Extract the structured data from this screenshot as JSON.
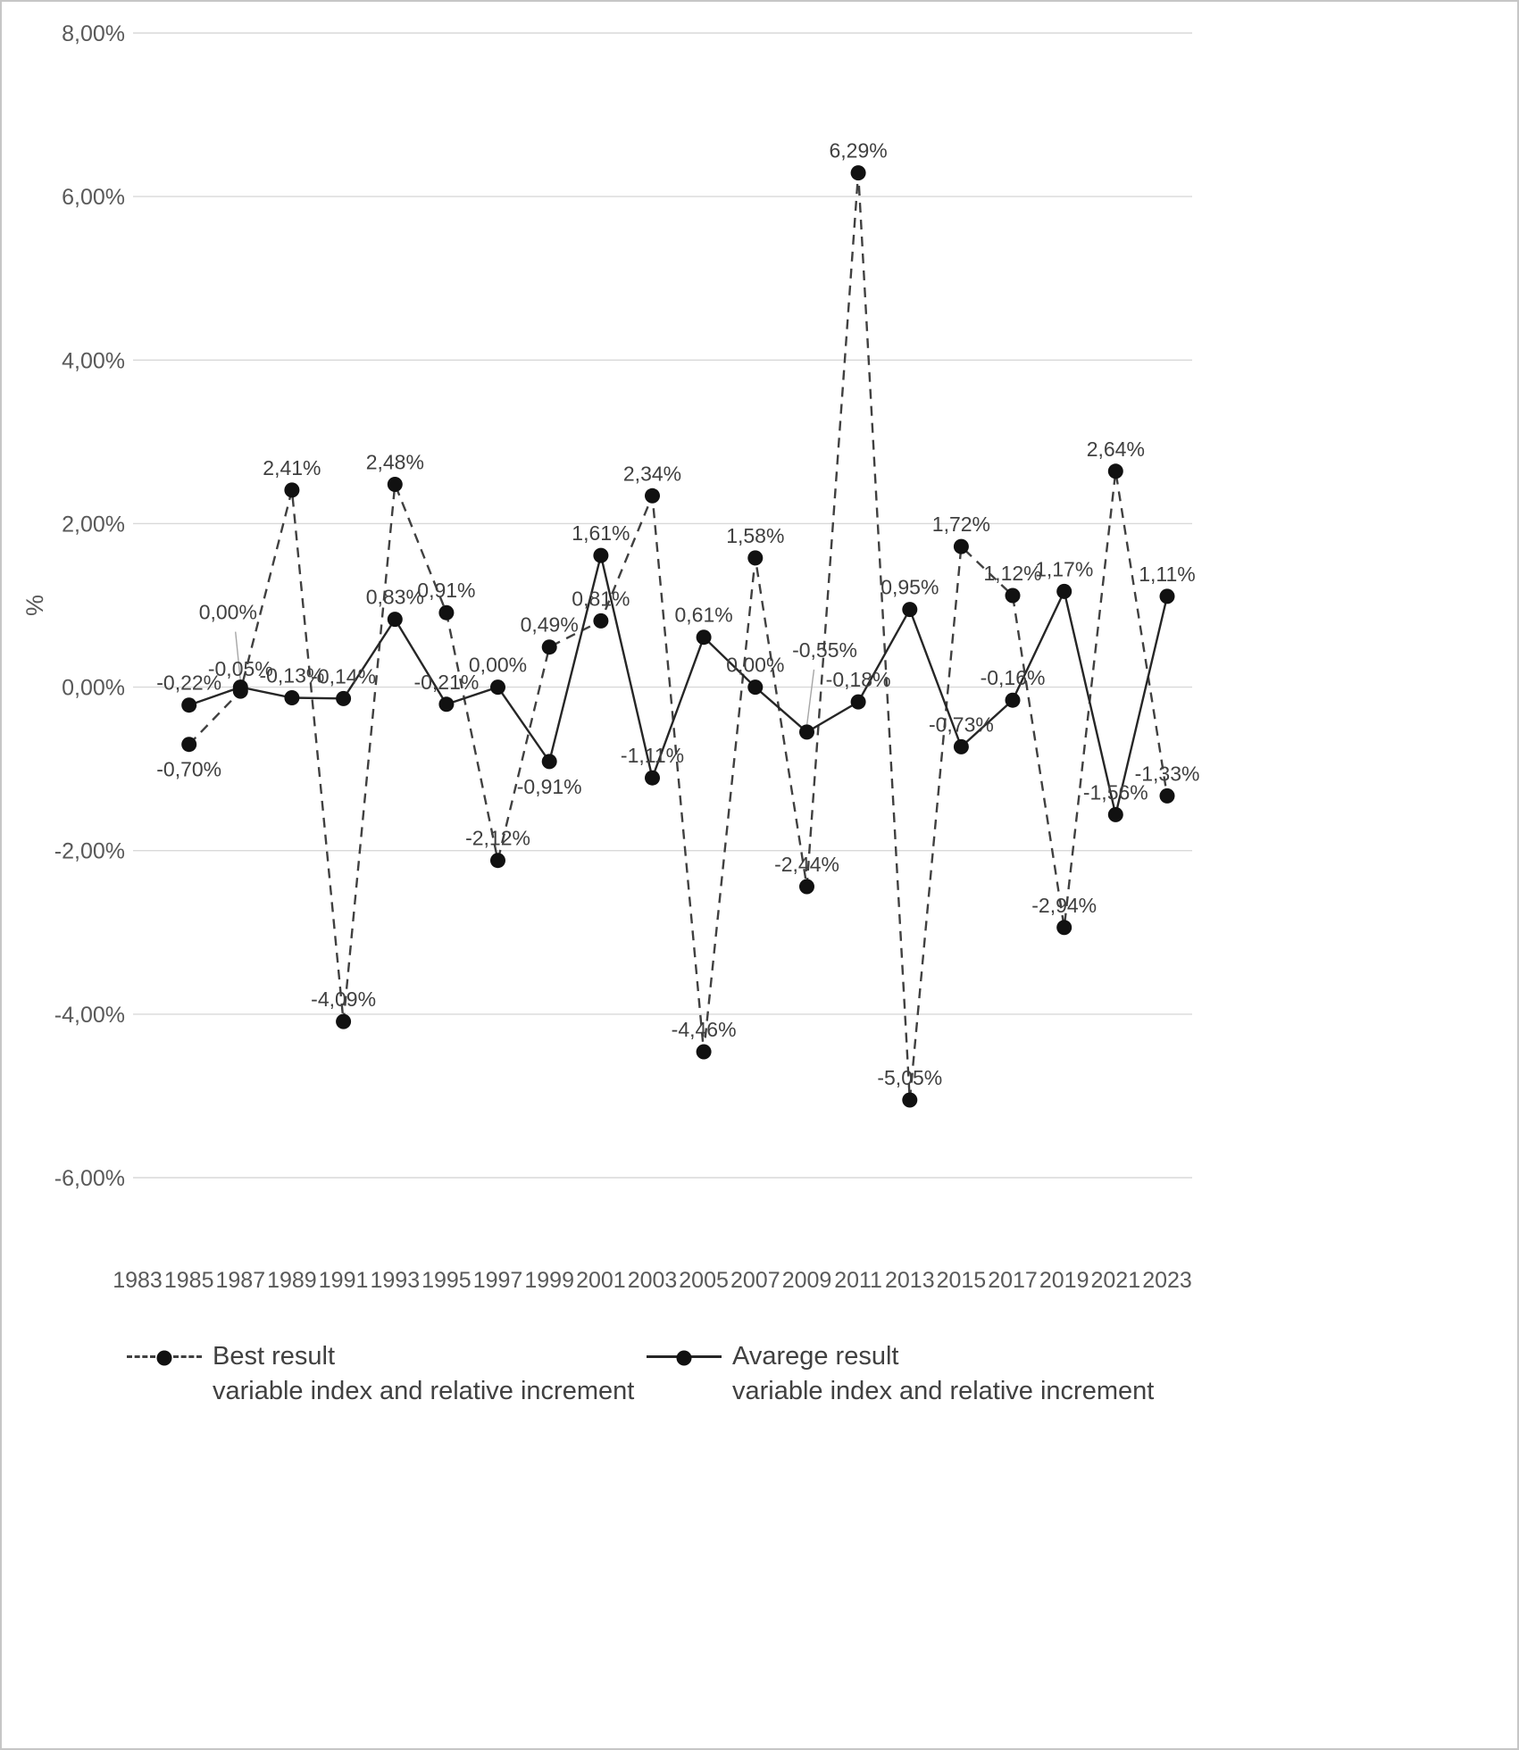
{
  "page": {
    "background": "#ffffff",
    "border_color": "#c6c6c6",
    "grid_color": "#d9d9d9",
    "text_color": "#595959",
    "label_color": "#404040"
  },
  "chart_data": {
    "type": "line",
    "title": "",
    "xlabel": "",
    "ylabel": "%",
    "grid": true,
    "legend_position": "bottom",
    "x_years": [
      1985,
      1987,
      1989,
      1991,
      1993,
      1995,
      1997,
      1999,
      2001,
      2003,
      2005,
      2007,
      2009,
      2011,
      2013,
      2015,
      2017,
      2019,
      2021,
      2023
    ],
    "x_axis_tick_labels": [
      "1983",
      "1985",
      "1987",
      "1989",
      "1991",
      "1993",
      "1995",
      "1997",
      "1999",
      "2001",
      "2003",
      "2005",
      "2007",
      "2009",
      "2011",
      "2013",
      "2015",
      "2017",
      "2019",
      "2021",
      "2023"
    ],
    "y_axis": {
      "min": -6,
      "max": 8,
      "step": 2,
      "tick_labels": [
        "8,00%",
        "6,00%",
        "4,00%",
        "2,00%",
        "0,00%",
        "-2,00%",
        "-4,00%",
        "-6,00%"
      ]
    },
    "series": [
      {
        "name": "Best result",
        "subtitle": "variable index and relative increment",
        "line_style": "dashed",
        "color": "#404040",
        "values": [
          -0.7,
          -0.05,
          2.41,
          -4.09,
          2.48,
          0.91,
          -2.12,
          0.49,
          0.81,
          2.34,
          -4.46,
          1.58,
          -2.44,
          6.29,
          -5.05,
          1.72,
          1.12,
          -2.94,
          2.64,
          -1.33
        ],
        "labels": [
          "-0,70%",
          "-0,05%",
          "2,41%",
          "-4,09%",
          "2,48%",
          "0,91%",
          "-2,12%",
          "0,49%",
          "0,81%",
          "2,34%",
          "-4,46%",
          "1,58%",
          "-2,44%",
          "6,29%",
          "-5,05%",
          "1,72%",
          "1,12%",
          "-2,94%",
          "2,64%",
          "-1,33%"
        ],
        "label_positions": [
          "below",
          "above",
          "above",
          "above",
          "above",
          "above",
          "above",
          "above",
          "above",
          "above",
          "above",
          "above",
          "above",
          "above",
          "above",
          "above",
          "above",
          "above",
          "above",
          "above"
        ],
        "callouts": {}
      },
      {
        "name": "Avarege result",
        "subtitle": "variable index and relative increment",
        "line_style": "solid",
        "color": "#262626",
        "values": [
          -0.22,
          0.0,
          -0.13,
          -0.14,
          0.83,
          -0.21,
          0.0,
          -0.91,
          1.61,
          -1.11,
          0.61,
          0.0,
          -0.55,
          -0.18,
          0.95,
          -0.73,
          -0.16,
          1.17,
          -1.56,
          1.11
        ],
        "labels": [
          "-0,22%",
          "0,00%",
          "-0,13%",
          "-0,14%",
          "0,83%",
          "-0,21%",
          "0,00%",
          "-0,91%",
          "1,61%",
          "-1,11%",
          "0,61%",
          "0,00%",
          "-0,55%",
          "-0,18%",
          "0,95%",
          "-0,73%",
          "-0,16%",
          "1,17%",
          "-1,56%",
          "1,11%"
        ],
        "label_positions": [
          "above",
          "callout",
          "above",
          "above",
          "above",
          "above",
          "above",
          "below",
          "above",
          "above",
          "above",
          "above",
          "callout",
          "above",
          "above",
          "above",
          "above",
          "above",
          "above",
          "above"
        ],
        "callouts": {
          "1": {
            "dx": -14,
            "dy": -76
          },
          "12": {
            "dx": 20,
            "dy": -84
          }
        }
      }
    ]
  }
}
